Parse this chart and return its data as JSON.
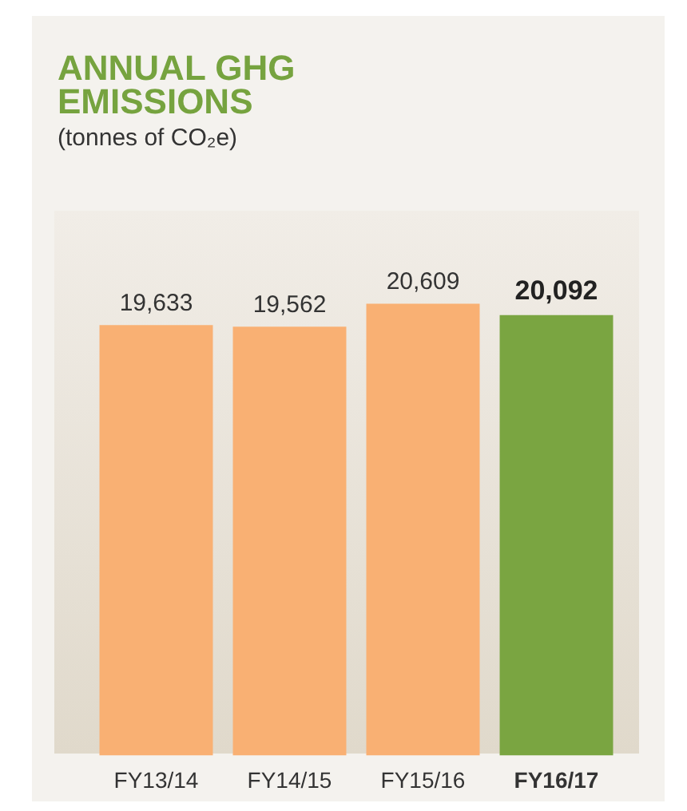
{
  "chart_data": {
    "type": "bar",
    "title": "ANNUAL GHG EMISSIONS",
    "subtitle": "(tonnes of CO₂e)",
    "categories": [
      "FY13/14",
      "FY14/15",
      "FY15/16",
      "FY16/17"
    ],
    "values": [
      19633,
      19562,
      20609,
      20092
    ],
    "colors": [
      "#f9b073",
      "#f9b073",
      "#f9b073",
      "#7aa541"
    ],
    "value_labels": [
      "19,633",
      "19,562",
      "20,609",
      "20,092"
    ]
  }
}
